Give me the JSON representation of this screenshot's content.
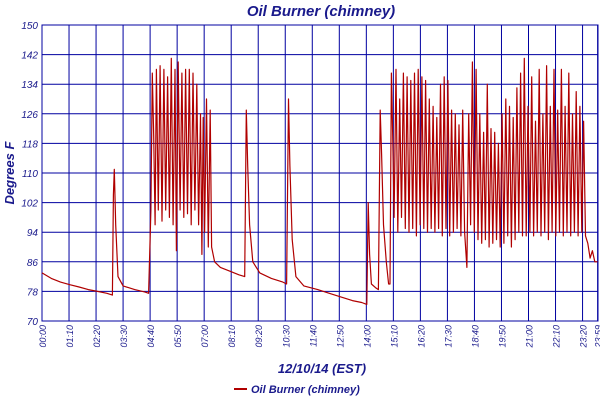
{
  "chart_data": {
    "type": "line",
    "title": "Oil Burner (chimney)",
    "xlabel": "12/10/14 (EST)",
    "ylabel": "Degrees F",
    "ylim": [
      70,
      150
    ],
    "yticks": [
      70,
      78,
      86,
      94,
      102,
      110,
      118,
      126,
      134,
      142,
      150
    ],
    "xlim_hours": [
      0,
      24
    ],
    "xticks": [
      "00:00",
      "01:10",
      "02:20",
      "03:30",
      "04:40",
      "05:50",
      "07:00",
      "08:10",
      "09:20",
      "10:30",
      "11:40",
      "12:50",
      "14:00",
      "15:10",
      "16:20",
      "17:30",
      "18:40",
      "19:50",
      "21:00",
      "22:10",
      "23:20",
      "23:59"
    ],
    "grid": true,
    "legend_position": "bottom-center",
    "series": [
      {
        "name": "Oil Burner (chimney)",
        "color": "#b00000",
        "cycle_pattern": "gradual decay with isolated spikes overnight; rapid cycling between about 90 and 140 during 04:45-07:10 and 14:10-23:55",
        "points": [
          [
            0.0,
            83
          ],
          [
            0.4,
            81.5
          ],
          [
            0.8,
            80.5
          ],
          [
            1.2,
            79.8
          ],
          [
            1.6,
            79.2
          ],
          [
            2.0,
            78.5
          ],
          [
            2.4,
            78.0
          ],
          [
            2.8,
            77.5
          ],
          [
            3.04,
            77.0
          ],
          [
            3.08,
            104
          ],
          [
            3.12,
            111
          ],
          [
            3.18,
            96
          ],
          [
            3.28,
            82
          ],
          [
            3.5,
            79.5
          ],
          [
            4.0,
            78.5
          ],
          [
            4.45,
            77.8
          ],
          [
            4.6,
            77.5
          ],
          [
            4.7,
            100
          ],
          [
            4.76,
            137
          ],
          [
            4.82,
            120
          ],
          [
            4.88,
            96
          ],
          [
            4.94,
            138
          ],
          [
            5.02,
            100
          ],
          [
            5.1,
            139
          ],
          [
            5.18,
            97
          ],
          [
            5.26,
            138
          ],
          [
            5.34,
            100
          ],
          [
            5.42,
            136
          ],
          [
            5.5,
            98
          ],
          [
            5.58,
            141
          ],
          [
            5.66,
            96
          ],
          [
            5.74,
            138
          ],
          [
            5.8,
            89
          ],
          [
            5.88,
            140
          ],
          [
            5.96,
            100
          ],
          [
            6.04,
            137
          ],
          [
            6.12,
            98
          ],
          [
            6.2,
            138
          ],
          [
            6.28,
            99
          ],
          [
            6.36,
            138
          ],
          [
            6.44,
            96
          ],
          [
            6.52,
            137
          ],
          [
            6.6,
            100
          ],
          [
            6.68,
            134
          ],
          [
            6.76,
            96
          ],
          [
            6.84,
            126
          ],
          [
            6.9,
            88
          ],
          [
            6.96,
            125
          ],
          [
            7.02,
            94
          ],
          [
            7.1,
            130
          ],
          [
            7.18,
            90
          ],
          [
            7.26,
            127
          ],
          [
            7.32,
            90
          ],
          [
            7.45,
            86
          ],
          [
            7.7,
            84.5
          ],
          [
            8.1,
            83.5
          ],
          [
            8.5,
            82.5
          ],
          [
            8.75,
            82
          ],
          [
            8.82,
            127
          ],
          [
            8.88,
            112
          ],
          [
            8.96,
            96
          ],
          [
            9.1,
            86
          ],
          [
            9.4,
            83
          ],
          [
            9.9,
            81.5
          ],
          [
            10.4,
            80.5
          ],
          [
            10.56,
            80
          ],
          [
            10.64,
            130
          ],
          [
            10.7,
            112
          ],
          [
            10.8,
            92
          ],
          [
            10.96,
            82
          ],
          [
            11.3,
            79.5
          ],
          [
            11.9,
            78.5
          ],
          [
            12.4,
            77.5
          ],
          [
            12.9,
            76.5
          ],
          [
            13.4,
            75.5
          ],
          [
            13.8,
            75
          ],
          [
            14.02,
            74.5
          ],
          [
            14.08,
            102
          ],
          [
            14.14,
            88
          ],
          [
            14.22,
            80
          ],
          [
            14.4,
            79
          ],
          [
            14.52,
            78.5
          ],
          [
            14.6,
            127
          ],
          [
            14.66,
            115
          ],
          [
            14.74,
            96
          ],
          [
            14.86,
            86
          ],
          [
            14.96,
            80
          ],
          [
            15.02,
            80
          ],
          [
            15.08,
            137
          ],
          [
            15.14,
            120
          ],
          [
            15.2,
            98
          ],
          [
            15.28,
            138
          ],
          [
            15.36,
            94
          ],
          [
            15.44,
            130
          ],
          [
            15.52,
            98
          ],
          [
            15.6,
            137
          ],
          [
            15.68,
            95
          ],
          [
            15.76,
            136
          ],
          [
            15.84,
            94
          ],
          [
            15.92,
            135
          ],
          [
            16.0,
            95
          ],
          [
            16.08,
            137
          ],
          [
            16.16,
            93
          ],
          [
            16.24,
            138
          ],
          [
            16.32,
            96
          ],
          [
            16.4,
            136
          ],
          [
            16.48,
            95
          ],
          [
            16.56,
            135
          ],
          [
            16.64,
            94
          ],
          [
            16.72,
            130
          ],
          [
            16.8,
            95
          ],
          [
            16.88,
            128
          ],
          [
            16.96,
            94
          ],
          [
            17.04,
            125
          ],
          [
            17.12,
            95
          ],
          [
            17.2,
            134
          ],
          [
            17.28,
            93
          ],
          [
            17.36,
            136
          ],
          [
            17.44,
            95
          ],
          [
            17.52,
            135
          ],
          [
            17.6,
            93
          ],
          [
            17.68,
            127
          ],
          [
            17.76,
            94
          ],
          [
            17.84,
            126
          ],
          [
            17.92,
            95
          ],
          [
            18.0,
            123
          ],
          [
            18.08,
            93
          ],
          [
            18.16,
            127
          ],
          [
            18.24,
            94
          ],
          [
            18.34,
            84.5
          ],
          [
            18.42,
            126
          ],
          [
            18.5,
            96
          ],
          [
            18.58,
            140
          ],
          [
            18.66,
            94
          ],
          [
            18.74,
            138
          ],
          [
            18.82,
            92
          ],
          [
            18.9,
            126
          ],
          [
            18.98,
            91
          ],
          [
            19.06,
            121
          ],
          [
            19.14,
            92
          ],
          [
            19.22,
            134
          ],
          [
            19.3,
            90
          ],
          [
            19.38,
            122
          ],
          [
            19.46,
            91
          ],
          [
            19.54,
            121
          ],
          [
            19.62,
            92
          ],
          [
            19.7,
            118
          ],
          [
            19.78,
            90
          ],
          [
            19.86,
            126
          ],
          [
            19.94,
            91
          ],
          [
            20.02,
            130
          ],
          [
            20.1,
            93
          ],
          [
            20.18,
            128
          ],
          [
            20.26,
            90
          ],
          [
            20.34,
            125
          ],
          [
            20.42,
            92
          ],
          [
            20.5,
            133
          ],
          [
            20.58,
            94
          ],
          [
            20.66,
            137
          ],
          [
            20.74,
            93
          ],
          [
            20.82,
            141
          ],
          [
            20.9,
            93
          ],
          [
            20.98,
            128
          ],
          [
            21.06,
            94
          ],
          [
            21.14,
            136
          ],
          [
            21.22,
            93
          ],
          [
            21.3,
            124
          ],
          [
            21.38,
            94
          ],
          [
            21.46,
            138
          ],
          [
            21.54,
            93
          ],
          [
            21.62,
            126
          ],
          [
            21.7,
            94
          ],
          [
            21.78,
            139
          ],
          [
            21.86,
            92
          ],
          [
            21.94,
            128
          ],
          [
            22.02,
            94
          ],
          [
            22.1,
            138
          ],
          [
            22.18,
            93
          ],
          [
            22.26,
            127
          ],
          [
            22.34,
            94
          ],
          [
            22.42,
            138
          ],
          [
            22.5,
            93
          ],
          [
            22.58,
            128
          ],
          [
            22.66,
            94
          ],
          [
            22.74,
            137
          ],
          [
            22.82,
            93
          ],
          [
            22.9,
            126
          ],
          [
            22.98,
            94
          ],
          [
            23.06,
            132
          ],
          [
            23.14,
            93
          ],
          [
            23.22,
            128
          ],
          [
            23.3,
            94
          ],
          [
            23.38,
            124
          ],
          [
            23.46,
            93
          ],
          [
            23.56,
            91
          ],
          [
            23.66,
            87
          ],
          [
            23.76,
            89
          ],
          [
            23.86,
            86
          ],
          [
            23.98,
            86
          ]
        ]
      }
    ],
    "legend": {
      "label": "Oil Burner (chimney)"
    }
  },
  "colors": {
    "grid": "#0000a0",
    "axis_text": "#1a1a8c",
    "series": "#b00000",
    "background": "#ffffff"
  }
}
